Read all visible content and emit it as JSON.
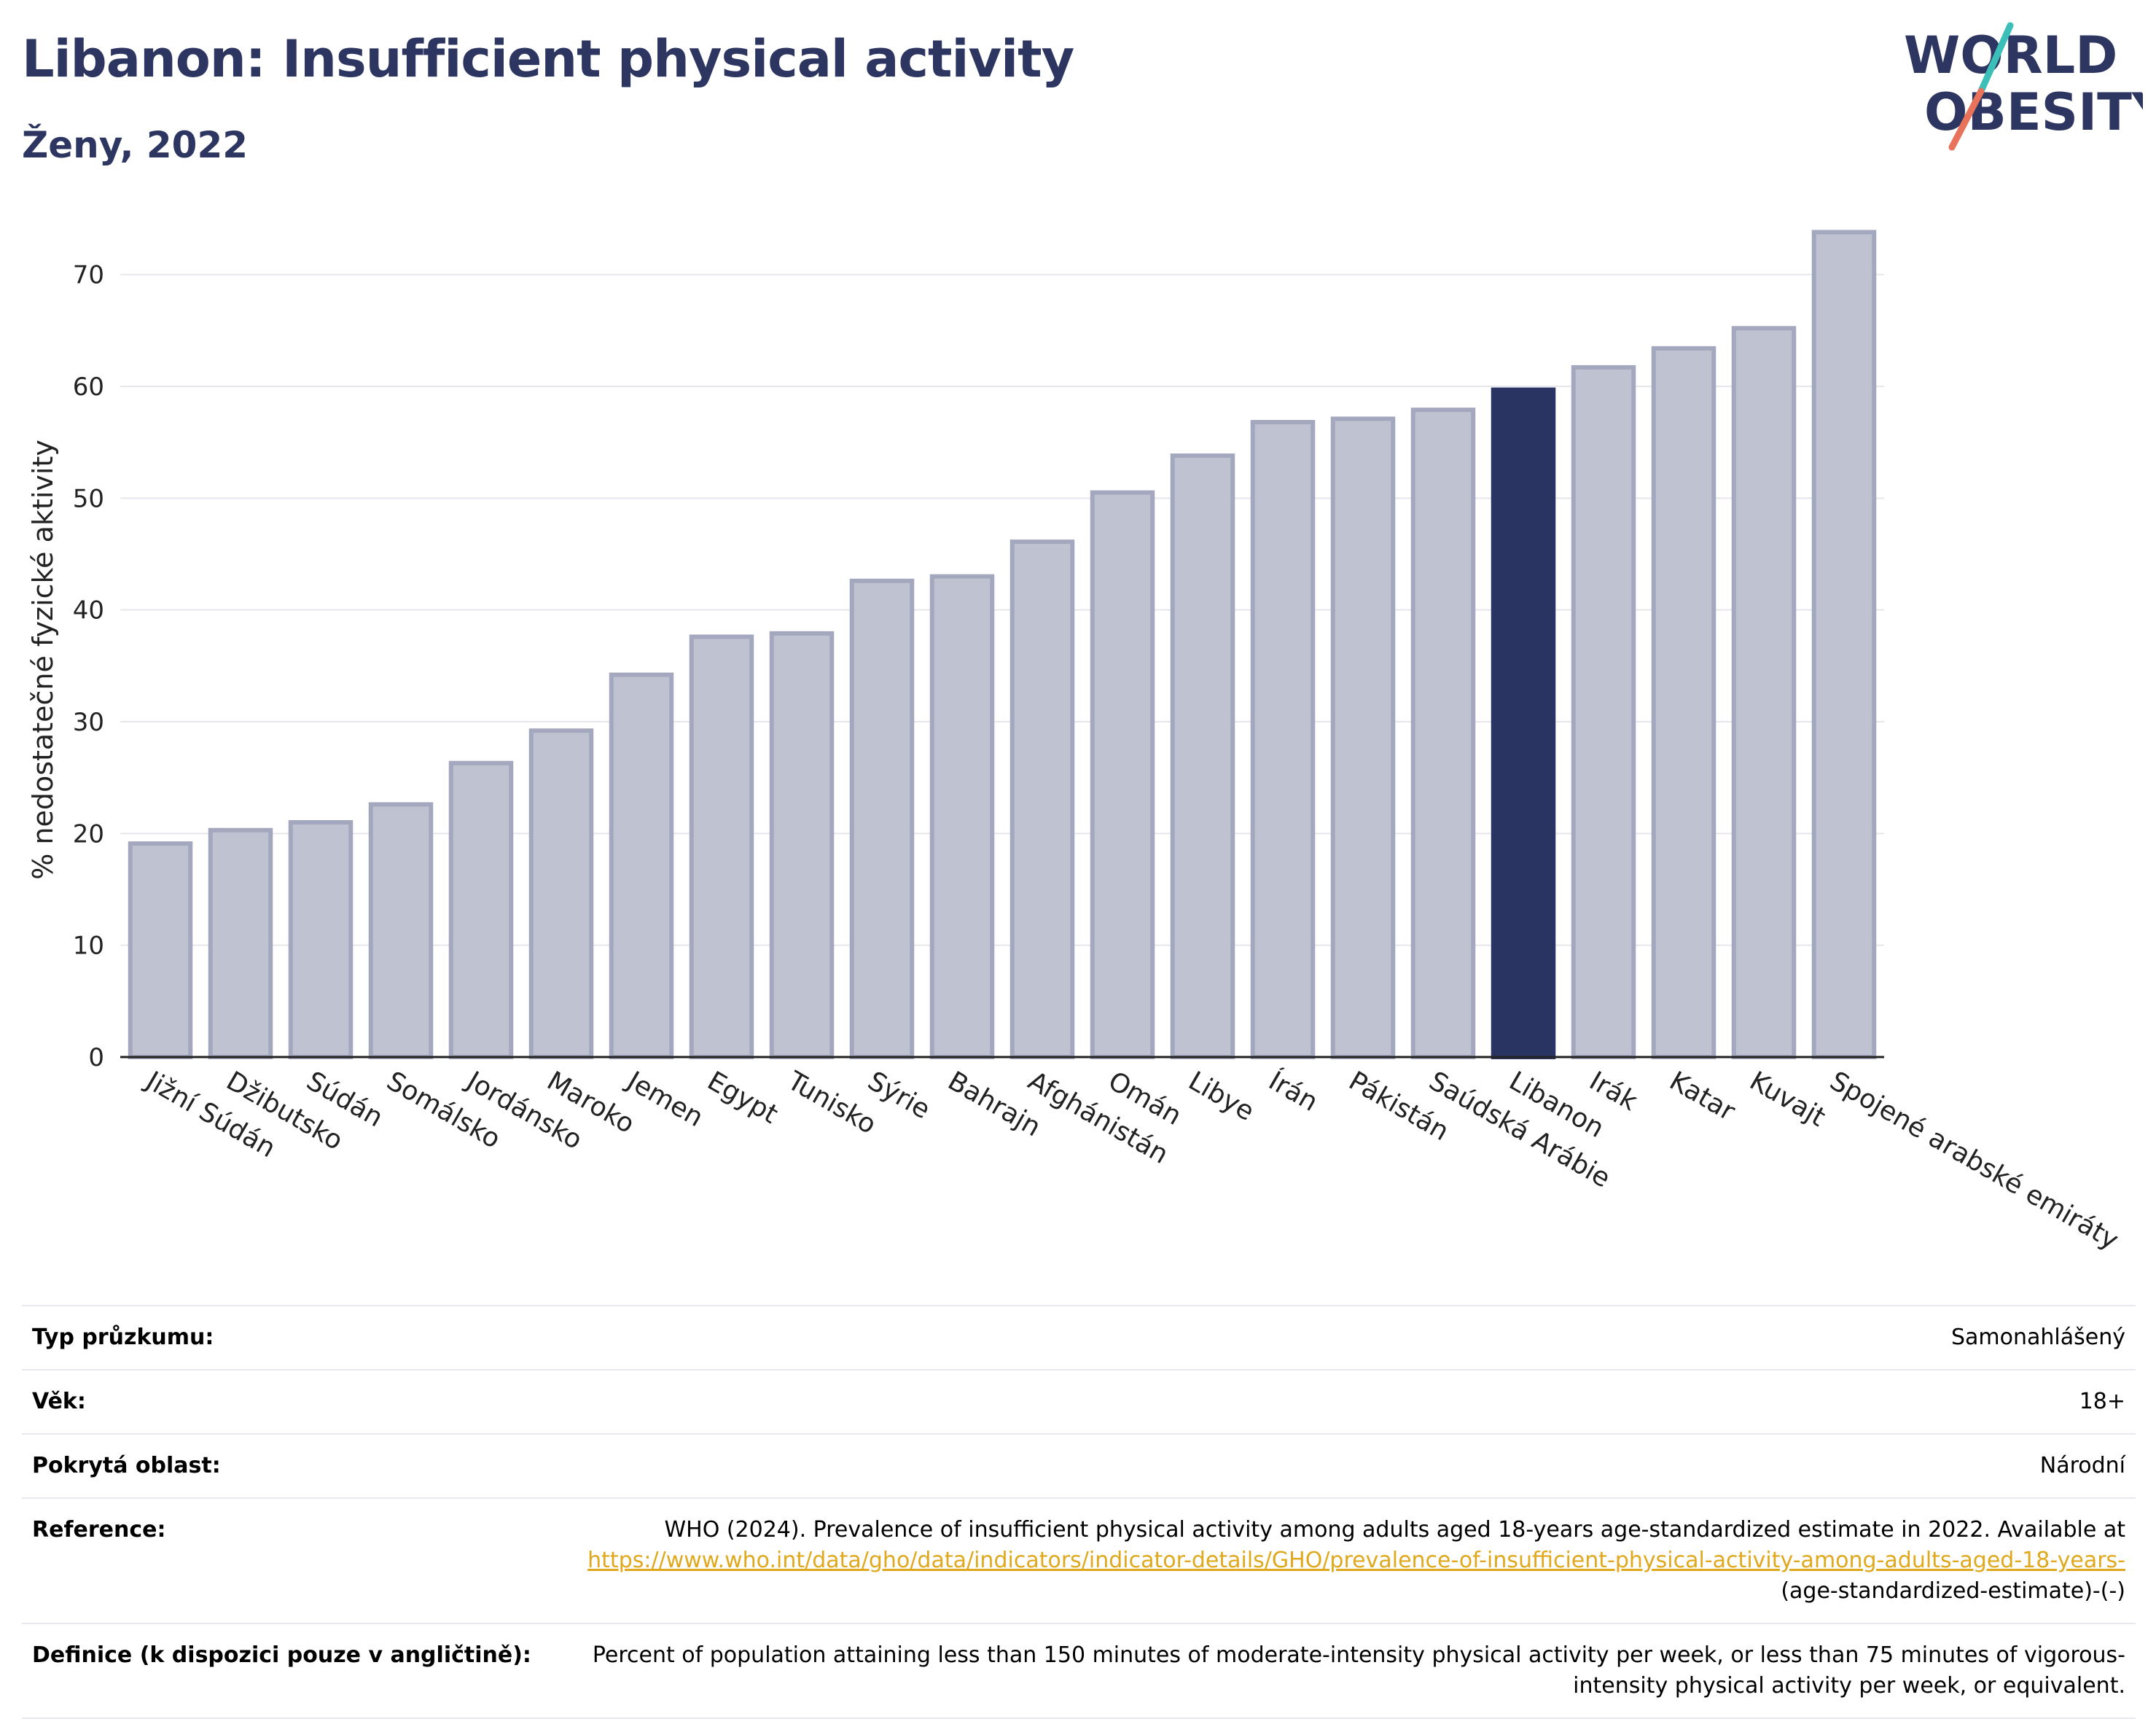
{
  "header": {
    "title": "Libanon: Insufficient physical activity",
    "subtitle": "Ženy, 2022"
  },
  "logo": {
    "line1": "WORLD",
    "line2": "OBESITY",
    "colors": {
      "text": "#2d3561",
      "slash_top": "#3bbfb8",
      "slash_bottom": "#e8735a"
    }
  },
  "chart_data": {
    "type": "bar",
    "ylabel": "% nedostatečné fyzické aktivity",
    "xlabel": "",
    "ylim": [
      0,
      75
    ],
    "yticks": [
      0,
      10,
      20,
      30,
      40,
      50,
      60,
      70
    ],
    "grid": true,
    "highlight": "Libanon",
    "colors": {
      "bar": "#bfc3d1",
      "bar_border": "#a3a8be",
      "highlight": "#2a3462"
    },
    "categories": [
      "Jižní Súdán",
      "Džibutsko",
      "Súdán",
      "Somálsko",
      "Jordánsko",
      "Maroko",
      "Jemen",
      "Egypt",
      "Tunisko",
      "Sýrie",
      "Bahrajn",
      "Afghánistán",
      "Omán",
      "Libye",
      "Írán",
      "Pákistán",
      "Saúdská Arábie",
      "Libanon",
      "Irák",
      "Katar",
      "Kuvajt",
      "Spojené arabské emiráty"
    ],
    "values": [
      19.1,
      20.3,
      21.0,
      22.6,
      26.3,
      29.2,
      34.2,
      37.6,
      37.9,
      42.6,
      43.0,
      46.1,
      50.5,
      53.8,
      56.8,
      57.1,
      57.9,
      59.7,
      61.7,
      63.4,
      65.2,
      73.8
    ]
  },
  "meta": {
    "survey_type_label": "Typ průzkumu:",
    "survey_type_value": "Samonahlášený",
    "age_label": "Věk:",
    "age_value": "18+",
    "coverage_label": "Pokrytá oblast:",
    "coverage_value": "Národní",
    "reference_label": "Reference:",
    "reference_text": "WHO (2024). Prevalence of insufficient physical activity among adults aged 18-years age-standardized estimate in 2022. Available at",
    "reference_link": "https://www.who.int/data/gho/data/indicators/indicator-details/GHO/prevalence-of-insufficient-physical-activity-among-adults-aged-18-years-",
    "reference_tail": "(age-standardized-estimate)-(-)",
    "definition_label": "Definice (k dispozici pouze v angličtině):",
    "definition_value": "Percent of population attaining less than 150 minutes of moderate-intensity physical activity per week, or less than 75 minutes of vigorous-intensity physical activity per week, or equivalent."
  }
}
